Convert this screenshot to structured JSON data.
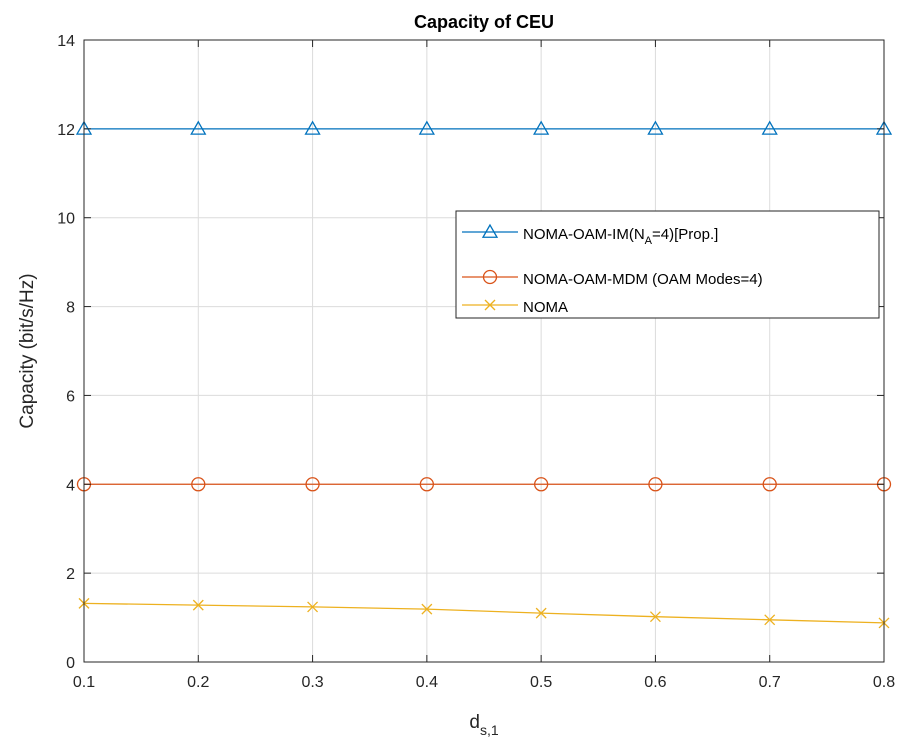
{
  "chart_data": {
    "type": "line",
    "title": "Capacity of CEU",
    "xlabel": "d",
    "xlabel_sub": "s,1",
    "ylabel": "Capacity (bit/s/Hz)",
    "x": [
      0.1,
      0.2,
      0.3,
      0.4,
      0.5,
      0.6,
      0.7,
      0.8
    ],
    "x_tick_labels": [
      "0.1",
      "0.2",
      "0.3",
      "0.4",
      "0.5",
      "0.6",
      "0.7",
      "0.8"
    ],
    "xlim": [
      0.1,
      0.8
    ],
    "y_ticks": [
      0,
      2,
      4,
      6,
      8,
      10,
      12,
      14
    ],
    "y_tick_labels": [
      "0",
      "2",
      "4",
      "6",
      "8",
      "10",
      "12",
      "14"
    ],
    "ylim": [
      0,
      14
    ],
    "grid": true,
    "legend_position": "right",
    "series": [
      {
        "name": "NOMA-OAM-IM(N_A=4)[Prop.]",
        "legend_main": "NOMA-OAM-IM(N",
        "legend_sub": "A",
        "legend_rest": "=4)[Prop.]",
        "color": "#0072BD",
        "marker": "triangle",
        "values": [
          12,
          12,
          12,
          12,
          12,
          12,
          12,
          12
        ]
      },
      {
        "name": "NOMA-OAM-MDM (OAM Modes=4)",
        "legend_label": "NOMA-OAM-MDM (OAM Modes=4)",
        "color": "#D95319",
        "marker": "circle",
        "values": [
          4,
          4,
          4,
          4,
          4,
          4,
          4,
          4
        ]
      },
      {
        "name": "NOMA",
        "legend_label": "NOMA",
        "color": "#EDB120",
        "marker": "x",
        "values": [
          1.32,
          1.28,
          1.24,
          1.19,
          1.1,
          1.02,
          0.95,
          0.88
        ]
      }
    ]
  }
}
